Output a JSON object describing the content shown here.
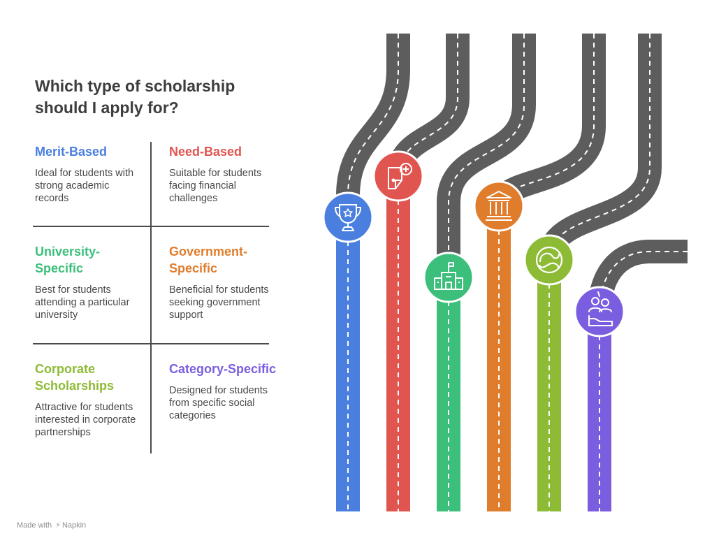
{
  "title": "Which type of scholarship should I apply for?",
  "options": [
    {
      "heading": "Merit-Based",
      "text": "Ideal for students with strong academic records",
      "color": "#4a7fe0"
    },
    {
      "heading": "Need-Based",
      "text": "Suitable for students facing financial challenges",
      "color": "#e15550"
    },
    {
      "heading": "University-Specific",
      "text": "Best for students attending a particular university",
      "color": "#3bbf7a"
    },
    {
      "heading": "Government-Specific",
      "text": "Beneficial for students seeking government support",
      "color": "#e07d2d"
    },
    {
      "heading": "Corporate Scholarships",
      "text": "Attractive for students interested in corporate partnerships",
      "color": "#8dbb35"
    },
    {
      "heading": "Category-Specific",
      "text": "Designed for students from specific social categories",
      "color": "#7b5ee0"
    }
  ],
  "icons": [
    "trophy-icon",
    "wallet-plus-icon",
    "school-building-icon",
    "bank-building-icon",
    "corporate-logo-icon",
    "community-hand-icon"
  ],
  "footer": {
    "made_with": "Made with",
    "brand": "Napkin"
  }
}
